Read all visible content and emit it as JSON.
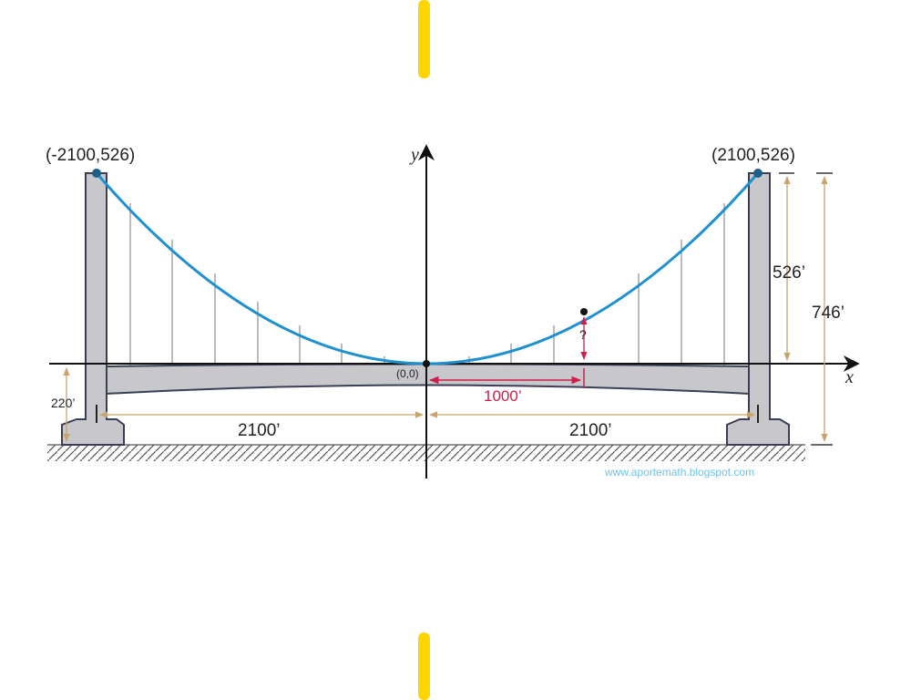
{
  "labels": {
    "left_point": "(-2100,526)",
    "right_point": "(2100,526)",
    "origin": "(0,0)",
    "y_axis": "y",
    "x_axis": "x",
    "height_526": "526’",
    "height_746": "746’",
    "clearance_220": "220’",
    "span_left": "2100’",
    "span_right": "2100’",
    "distance_1000": "1000’",
    "unknown": "?",
    "watermark": "www.aportemath.blogspot.com"
  },
  "colors": {
    "cable": "#1e90d0",
    "pylon_fill": "#c8c8cc",
    "pylon_stroke": "#3a3f55",
    "dimension": "#c8a36a",
    "highlight": "#cc1f4a",
    "axis": "#111111",
    "divider": "#ffd400",
    "watermark": "#6fc3ee"
  }
}
